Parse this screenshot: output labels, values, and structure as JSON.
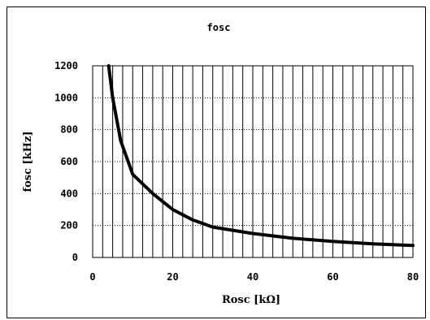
{
  "chart_data": {
    "type": "line",
    "title": "fosc",
    "xlabel": "Rosc [kΩ]",
    "ylabel": "fosc [kHz]",
    "xlim": [
      0,
      80
    ],
    "ylim": [
      0,
      1200
    ],
    "x_ticks": [
      0,
      20,
      40,
      60,
      80
    ],
    "y_ticks": [
      0,
      200,
      400,
      600,
      800,
      1000,
      1200
    ],
    "vertical_grid_step": 2.5,
    "horizontal_grid_step": 200,
    "grid": true,
    "series": [
      {
        "x": [
          4,
          5,
          7,
          10,
          15,
          20,
          25,
          30,
          40,
          50,
          60,
          70,
          80
        ],
        "y": [
          1200,
          1000,
          730,
          520,
          400,
          300,
          235,
          190,
          150,
          120,
          100,
          85,
          75
        ],
        "color": "#000000"
      }
    ]
  }
}
